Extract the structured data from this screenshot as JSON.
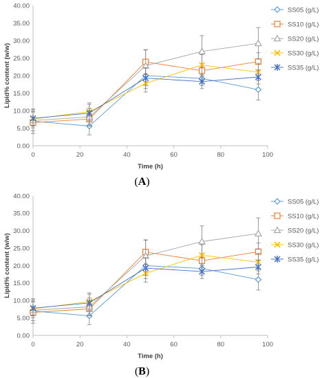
{
  "chart_data": [
    {
      "panel_label": "A",
      "type": "line",
      "xlabel": "Time (h)",
      "ylabel": "Lipid% content (w/w)",
      "xlim": [
        0,
        100
      ],
      "ylim": [
        0,
        40
      ],
      "xticks": [
        "0",
        "20",
        "40",
        "60",
        "80",
        "100"
      ],
      "yticks": [
        "0.00",
        "5.00",
        "10.00",
        "15.00",
        "20.00",
        "25.00",
        "30.00",
        "35.00",
        "40.00"
      ],
      "grid": false,
      "legend_position": "right",
      "x": [
        0,
        24,
        48,
        72,
        96
      ],
      "series": [
        {
          "name": "SS05 (g/L)",
          "marker": "diamond",
          "color": "#5B9BD5",
          "values": [
            7.0,
            5.6,
            20.0,
            19.2,
            16.0
          ],
          "errors": [
            3.5,
            2.5,
            2.8,
            2.0,
            3.0
          ]
        },
        {
          "name": "SS10 (g/L)",
          "marker": "square",
          "color": "#ED7D31",
          "values": [
            6.6,
            7.6,
            23.9,
            21.4,
            24.0
          ],
          "errors": [
            1.5,
            2.0,
            3.5,
            2.0,
            2.5
          ]
        },
        {
          "name": "SS20 (g/L)",
          "marker": "triangle",
          "color": "#A5A5A5",
          "values": [
            7.2,
            8.2,
            22.8,
            26.9,
            29.2
          ],
          "errors": [
            3.0,
            2.5,
            4.5,
            4.5,
            4.5
          ]
        },
        {
          "name": "SS30 (g/L)",
          "marker": "x",
          "color": "#FFC000",
          "values": [
            7.6,
            9.7,
            17.8,
            23.0,
            21.0
          ],
          "errors": [
            2.0,
            2.5,
            2.5,
            3.0,
            2.5
          ]
        },
        {
          "name": "SS35 (g/L)",
          "marker": "star",
          "color": "#4472C4",
          "values": [
            7.8,
            9.3,
            19.3,
            18.3,
            19.6
          ],
          "errors": [
            2.0,
            2.5,
            3.0,
            2.0,
            2.0
          ]
        }
      ]
    },
    {
      "panel_label": "B",
      "type": "line",
      "xlabel": "Time (h)",
      "ylabel": "Lipid% content (w/w)",
      "xlim": [
        0,
        100
      ],
      "ylim": [
        0,
        40
      ],
      "xticks": [
        "0",
        "20",
        "40",
        "60",
        "80",
        "100"
      ],
      "yticks": [
        "0.00",
        "5.00",
        "10.00",
        "15.00",
        "20.00",
        "25.00",
        "30.00",
        "35.00",
        "40.00"
      ],
      "grid": false,
      "legend_position": "right",
      "x": [
        0,
        24,
        48,
        72,
        96
      ],
      "series": [
        {
          "name": "SS05 (g/L)",
          "marker": "diamond",
          "color": "#5B9BD5",
          "values": [
            7.0,
            5.6,
            20.0,
            19.2,
            16.0
          ],
          "errors": [
            3.5,
            2.5,
            2.8,
            2.0,
            3.0
          ]
        },
        {
          "name": "SS10 (g/L)",
          "marker": "square",
          "color": "#ED7D31",
          "values": [
            6.6,
            7.6,
            23.9,
            21.4,
            24.0
          ],
          "errors": [
            1.5,
            2.0,
            3.5,
            2.0,
            2.5
          ]
        },
        {
          "name": "SS20 (g/L)",
          "marker": "triangle",
          "color": "#A5A5A5",
          "values": [
            7.2,
            8.2,
            22.8,
            26.9,
            29.2
          ],
          "errors": [
            3.0,
            2.5,
            4.5,
            4.5,
            4.5
          ]
        },
        {
          "name": "SS30 (g/L)",
          "marker": "x",
          "color": "#FFC000",
          "values": [
            7.6,
            9.7,
            17.8,
            23.0,
            21.0
          ],
          "errors": [
            2.0,
            2.5,
            2.5,
            3.0,
            2.5
          ]
        },
        {
          "name": "SS35 (g/L)",
          "marker": "star",
          "color": "#4472C4",
          "values": [
            7.8,
            9.3,
            19.3,
            18.3,
            19.6
          ],
          "errors": [
            2.0,
            2.5,
            3.0,
            2.0,
            2.0
          ]
        }
      ]
    }
  ]
}
